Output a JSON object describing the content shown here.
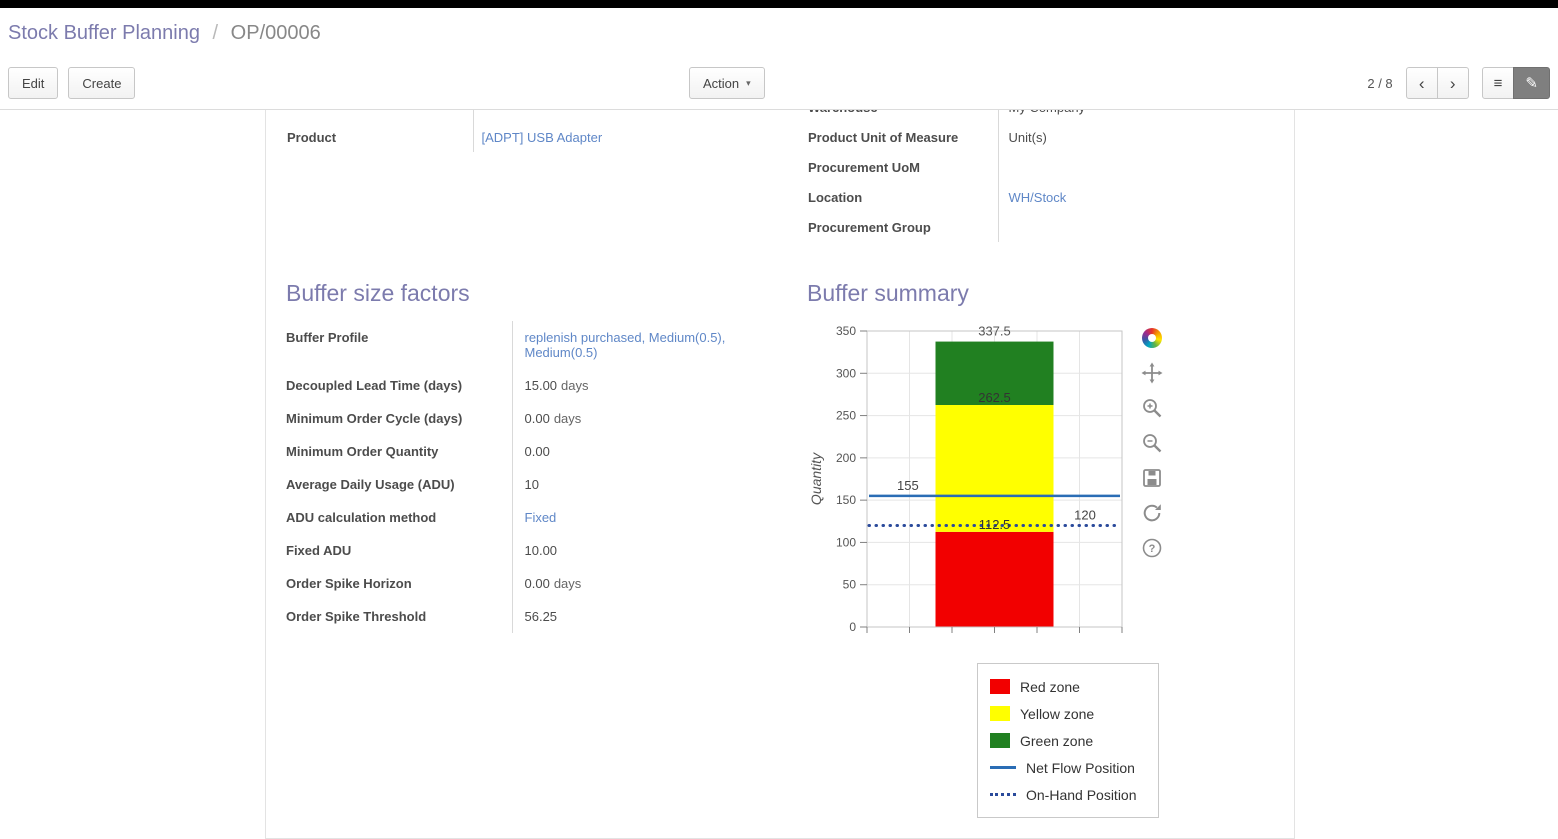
{
  "colors": {
    "accent": "#7c7bad",
    "link": "#5f87c7",
    "red_zone": "#f20000",
    "yellow_zone": "#ffff00",
    "green_zone": "#218021",
    "net_flow_line": "#2a6db5",
    "on_hand_line": "#2a4a9b",
    "top_bar": "#000000"
  },
  "breadcrumb": {
    "parent": "Stock Buffer Planning",
    "separator": "/",
    "current": "OP/00006"
  },
  "toolbar": {
    "edit_label": "Edit",
    "create_label": "Create",
    "action_label": "Action",
    "pager_value": "2 / 8",
    "icons": {
      "prev": "‹",
      "next": "›",
      "caret": "▾",
      "list_view": "≡",
      "form_view": "✎"
    }
  },
  "form": {
    "left_group": [
      {
        "label": "",
        "value": ""
      },
      {
        "label": "Product",
        "value": "[ADPT] USB Adapter",
        "link": true
      }
    ],
    "right_group": [
      {
        "label": "Warehouse",
        "value": "My Company"
      },
      {
        "label": "Product Unit of Measure",
        "value": "Unit(s)"
      },
      {
        "label": "Procurement UoM",
        "value": ""
      },
      {
        "label": "Location",
        "value": "WH/Stock",
        "link": true
      },
      {
        "label": "Procurement Group",
        "value": ""
      }
    ],
    "buffer_factors": {
      "title": "Buffer size factors",
      "rows": [
        {
          "label": "Buffer Profile",
          "value": "replenish purchased, Medium(0.5), Medium(0.5)",
          "link": true
        },
        {
          "label": "Decoupled Lead Time (days)",
          "value": "15.00",
          "suffix": "days"
        },
        {
          "label": "Minimum Order Cycle (days)",
          "value": "0.00",
          "suffix": "days"
        },
        {
          "label": "Minimum Order Quantity",
          "value": "0.00"
        },
        {
          "label": "Average Daily Usage (ADU)",
          "value": "10"
        },
        {
          "label": "ADU calculation method",
          "value": "Fixed",
          "link": true
        },
        {
          "label": "Fixed ADU",
          "value": "10.00"
        },
        {
          "label": "Order Spike Horizon",
          "value": "0.00",
          "suffix": "days"
        },
        {
          "label": "Order Spike Threshold",
          "value": "56.25"
        }
      ]
    },
    "buffer_summary": {
      "title": "Buffer summary"
    }
  },
  "chart_data": {
    "type": "bar",
    "title": "Buffer summary",
    "xlabel": "",
    "ylabel": "Quantity",
    "ylim": [
      0,
      350
    ],
    "yticks": [
      0,
      50,
      100,
      150,
      200,
      250,
      300,
      350
    ],
    "grid": true,
    "zones": [
      {
        "name": "Red zone",
        "from": 0,
        "to": 112.5,
        "color": "#f20000",
        "top_label": "112.5"
      },
      {
        "name": "Yellow zone",
        "from": 112.5,
        "to": 262.5,
        "color": "#ffff00",
        "top_label": "262.5"
      },
      {
        "name": "Green zone",
        "from": 262.5,
        "to": 337.5,
        "color": "#218021",
        "top_label": "337.5"
      }
    ],
    "lines": [
      {
        "name": "Net Flow Position",
        "value": 155,
        "style": "solid",
        "color": "#2a6db5",
        "label": "155",
        "label_side": "left"
      },
      {
        "name": "On-Hand Position",
        "value": 120,
        "style": "dotted",
        "color": "#2a4a9b",
        "label": "120",
        "label_side": "right"
      }
    ],
    "legend": [
      {
        "label": "Red zone",
        "swatch": "box",
        "color": "#f20000"
      },
      {
        "label": "Yellow zone",
        "swatch": "box",
        "color": "#ffff00"
      },
      {
        "label": "Green zone",
        "swatch": "box",
        "color": "#218021"
      },
      {
        "label": "Net Flow Position",
        "swatch": "line",
        "color": "#2a6db5"
      },
      {
        "label": "On-Hand Position",
        "swatch": "dots",
        "color": "#2a4a9b"
      }
    ],
    "legend_position": "bottom-right",
    "toolbar_icons": [
      "palette",
      "pan",
      "zoom-in",
      "zoom-out",
      "save",
      "refresh",
      "help"
    ]
  }
}
